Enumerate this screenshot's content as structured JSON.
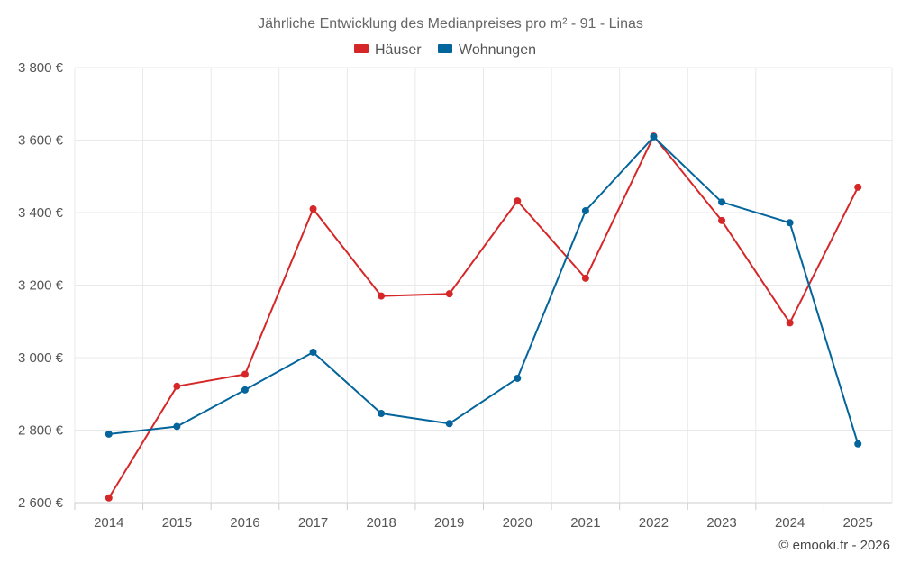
{
  "chart_data": {
    "type": "line",
    "title": "Jährliche Entwicklung des Medianpreises pro m² - 91 - Linas",
    "categories": [
      "2014",
      "2015",
      "2016",
      "2017",
      "2018",
      "2019",
      "2020",
      "2021",
      "2022",
      "2023",
      "2024",
      "2025"
    ],
    "series": [
      {
        "name": "Häuser",
        "color": "#d62728",
        "values": [
          2613,
          2921,
          2954,
          3410,
          3170,
          3176,
          3432,
          3219,
          3611,
          3378,
          3096,
          3470
        ]
      },
      {
        "name": "Wohnungen",
        "color": "#03659b",
        "values": [
          2789,
          2810,
          2911,
          3015,
          2846,
          2818,
          2943,
          3405,
          3609,
          3429,
          3372,
          2762
        ]
      }
    ],
    "ylim": [
      2600,
      3800
    ],
    "yticks": [
      2600,
      2800,
      3000,
      3200,
      3400,
      3600,
      3800
    ],
    "ytick_labels": [
      "2 600 €",
      "2 800 €",
      "3 000 €",
      "3 200 €",
      "3 400 €",
      "3 600 €",
      "3 800 €"
    ],
    "grid": true,
    "legend_position": "top-center",
    "credit": "© emooki.fr - 2026"
  }
}
